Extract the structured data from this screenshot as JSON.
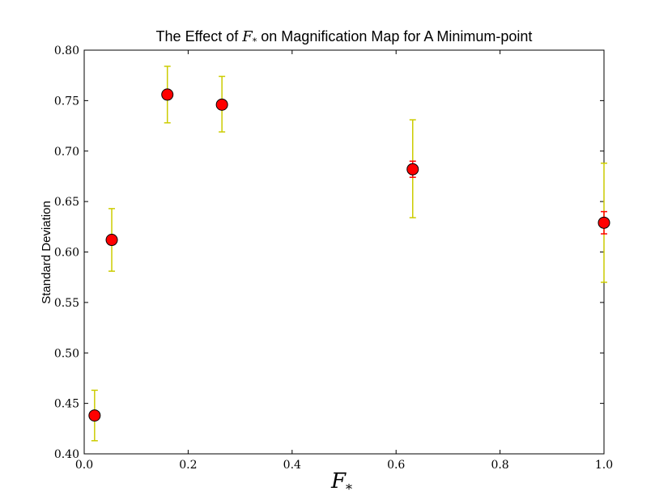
{
  "chart_data": {
    "type": "scatter",
    "title": {
      "prefix": "The Effect of ",
      "math_base": "F",
      "math_sub": "*",
      "suffix": " on Magnification Map for A Minimum-point"
    },
    "xlabel": {
      "base": "F",
      "sub": "*"
    },
    "ylabel": "Standard Deviation",
    "xlim": [
      0.0,
      1.0
    ],
    "ylim": [
      0.4,
      0.8
    ],
    "x_ticks": [
      "0.0",
      "0.2",
      "0.4",
      "0.6",
      "0.8",
      "1.0"
    ],
    "x_tick_values": [
      0.0,
      0.2,
      0.4,
      0.6,
      0.8,
      1.0
    ],
    "y_ticks": [
      "0.40",
      "0.45",
      "0.50",
      "0.55",
      "0.60",
      "0.65",
      "0.70",
      "0.75",
      "0.80"
    ],
    "y_tick_values": [
      0.4,
      0.45,
      0.5,
      0.55,
      0.6,
      0.65,
      0.7,
      0.75,
      0.8
    ],
    "grid": false,
    "legend": "none",
    "marker_color": "#ff0000",
    "errorbar_outer_color": "#cccc00",
    "errorbar_inner_color": "#ff0000",
    "points": [
      {
        "x": 0.02,
        "y": 0.438,
        "err_outer": [
          0.413,
          0.463
        ],
        "err_inner": [
          0.437,
          0.439
        ]
      },
      {
        "x": 0.053,
        "y": 0.612,
        "err_outer": [
          0.581,
          0.643
        ],
        "err_inner": [
          0.611,
          0.613
        ]
      },
      {
        "x": 0.16,
        "y": 0.756,
        "err_outer": [
          0.728,
          0.784
        ],
        "err_inner": [
          0.755,
          0.757
        ]
      },
      {
        "x": 0.265,
        "y": 0.746,
        "err_outer": [
          0.719,
          0.774
        ],
        "err_inner": [
          0.745,
          0.747
        ]
      },
      {
        "x": 0.632,
        "y": 0.682,
        "err_outer": [
          0.634,
          0.731
        ],
        "err_inner": [
          0.674,
          0.69
        ]
      },
      {
        "x": 1.0,
        "y": 0.629,
        "err_outer": [
          0.57,
          0.688
        ],
        "err_inner": [
          0.618,
          0.64
        ]
      }
    ]
  }
}
